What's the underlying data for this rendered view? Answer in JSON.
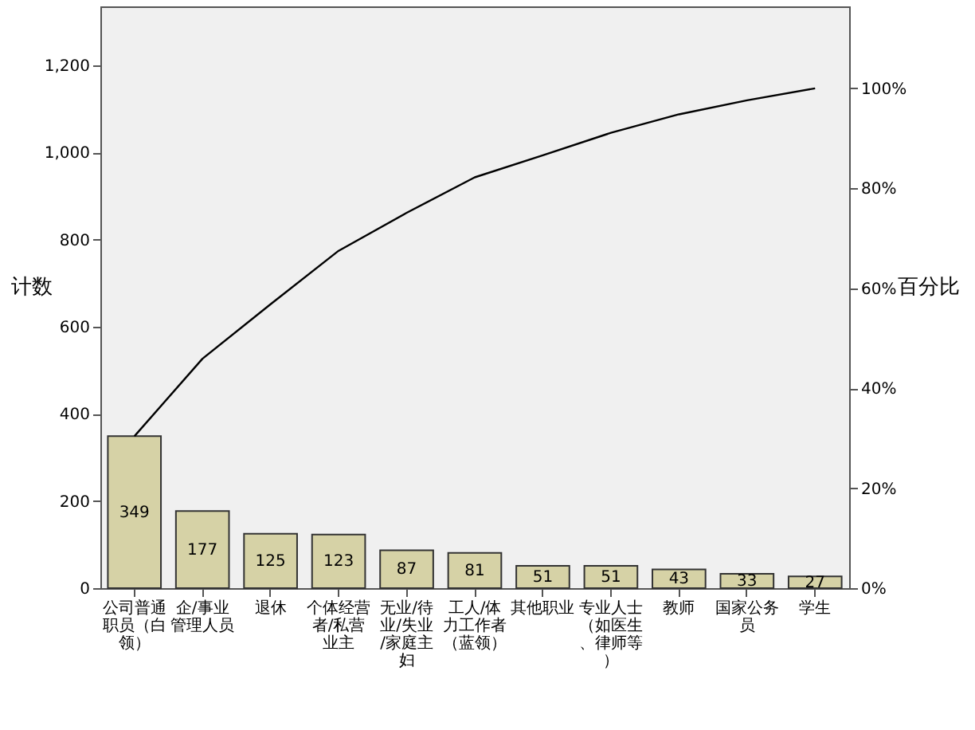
{
  "chart_data": {
    "type": "bar",
    "ylabel": "计数",
    "y2label": "百分比",
    "categories": [
      "公司普通职员（白领）",
      "企/事业管理人员",
      "退休",
      "个体经营者/私营业主",
      "无业/待业/失业/家庭主妇",
      "工人/体力工作者（蓝领）",
      "其他职业",
      "专业人士（如医生、律师等）",
      "教师",
      "国家公务员",
      "学生"
    ],
    "series": [
      {
        "color": "#d6d2a6",
        "values": [
          349,
          177,
          125,
          123,
          87,
          81,
          51,
          51,
          43,
          33,
          27
        ],
        "value_labels": [
          "349",
          "177",
          "125",
          "123",
          "87",
          "81",
          "51",
          "51",
          "43",
          "33",
          "27"
        ]
      },
      {
        "type": "line",
        "axis": "y2",
        "color": "#000000",
        "values": [
          30.4,
          45.9,
          56.8,
          67.5,
          75.1,
          82.2,
          86.6,
          91.1,
          94.8,
          97.6,
          100
        ]
      }
    ],
    "ylim": [
      0,
      1335
    ],
    "yticks": [
      0,
      200,
      400,
      600,
      800,
      {
        "value": 1000,
        "label": "1,000"
      },
      {
        "value": 1200,
        "label": "1,200"
      }
    ],
    "y2lim": [
      0,
      116.4
    ],
    "y2ticks": [
      {
        "value": 0,
        "label": "0%"
      },
      {
        "value": 20,
        "label": "20%"
      },
      {
        "value": 40,
        "label": "40%"
      },
      {
        "value": 60,
        "label": "60%"
      },
      {
        "value": 80,
        "label": "80%"
      },
      {
        "value": 100,
        "label": "100%"
      }
    ],
    "grid": false,
    "marker": "none"
  }
}
